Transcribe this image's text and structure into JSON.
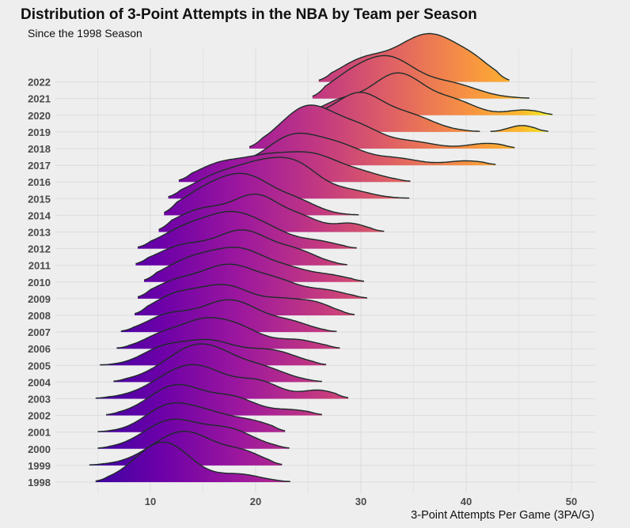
{
  "chart_data": {
    "type": "ridgeline",
    "title": "Distribution of 3-Point Attempts in the NBA by Team per Season",
    "subtitle": "Since the 1998 Season",
    "xlabel": "3-Point Attempts Per Game (3PA/G)",
    "ylabel": "",
    "xlim": [
      3.5,
      52
    ],
    "xticks": [
      10,
      20,
      30,
      40,
      50
    ],
    "grid": true,
    "colormap": "plasma",
    "colors": {
      "low": "#4c03a3",
      "mid": "#c13a91",
      "high": "#f6a33a",
      "top": "#f0f921",
      "outline": "#1e2d2a"
    },
    "seasons": [
      {
        "season": "1998",
        "range": [
          4.8,
          23.3
        ],
        "peaks": [
          {
            "x": 11.2,
            "h": 1.0,
            "w": 2.6
          },
          {
            "x": 18.5,
            "h": 0.18,
            "w": 2.0
          }
        ]
      },
      {
        "season": "1999",
        "range": [
          4.2,
          22.5
        ],
        "peaks": [
          {
            "x": 13.2,
            "h": 0.85,
            "w": 3.0
          },
          {
            "x": 19.0,
            "h": 0.25,
            "w": 1.8
          }
        ]
      },
      {
        "season": "2000",
        "range": [
          5.0,
          23.2
        ],
        "peaks": [
          {
            "x": 12.0,
            "h": 0.7,
            "w": 2.6
          },
          {
            "x": 17.5,
            "h": 0.45,
            "w": 2.4
          }
        ]
      },
      {
        "season": "2001",
        "range": [
          5.0,
          22.8
        ],
        "peaks": [
          {
            "x": 11.5,
            "h": 0.55,
            "w": 2.2
          },
          {
            "x": 15.5,
            "h": 0.45,
            "w": 2.6
          },
          {
            "x": 20.0,
            "h": 0.18,
            "w": 1.8
          }
        ]
      },
      {
        "season": "2002",
        "range": [
          5.8,
          26.3
        ],
        "peaks": [
          {
            "x": 12.5,
            "h": 0.75,
            "w": 2.6
          },
          {
            "x": 18.0,
            "h": 0.4,
            "w": 2.2
          },
          {
            "x": 23.5,
            "h": 0.12,
            "w": 1.8
          }
        ]
      },
      {
        "season": "2003",
        "range": [
          4.8,
          28.8
        ],
        "peaks": [
          {
            "x": 14.0,
            "h": 0.85,
            "w": 3.2
          },
          {
            "x": 20.5,
            "h": 0.35,
            "w": 2.0
          },
          {
            "x": 26.0,
            "h": 0.2,
            "w": 1.6
          }
        ]
      },
      {
        "season": "2004",
        "range": [
          6.5,
          26.3
        ],
        "peaks": [
          {
            "x": 14.8,
            "h": 0.95,
            "w": 3.2
          },
          {
            "x": 21.0,
            "h": 0.25,
            "w": 2.2
          }
        ]
      },
      {
        "season": "2005",
        "range": [
          5.2,
          26.7
        ],
        "peaks": [
          {
            "x": 11.0,
            "h": 0.35,
            "w": 2.0
          },
          {
            "x": 15.5,
            "h": 0.6,
            "w": 2.6
          },
          {
            "x": 21.5,
            "h": 0.35,
            "w": 2.4
          }
        ]
      },
      {
        "season": "2006",
        "range": [
          6.8,
          28.0
        ],
        "peaks": [
          {
            "x": 11.0,
            "h": 0.3,
            "w": 1.8
          },
          {
            "x": 14.5,
            "h": 0.5,
            "w": 2.0
          },
          {
            "x": 18.0,
            "h": 0.55,
            "w": 2.4
          },
          {
            "x": 24.0,
            "h": 0.2,
            "w": 2.0
          }
        ]
      },
      {
        "season": "2007",
        "range": [
          7.2,
          27.7
        ],
        "peaks": [
          {
            "x": 11.5,
            "h": 0.35,
            "w": 2.0
          },
          {
            "x": 17.5,
            "h": 0.8,
            "w": 3.0
          },
          {
            "x": 23.5,
            "h": 0.18,
            "w": 1.8
          }
        ]
      },
      {
        "season": "2008",
        "range": [
          8.5,
          29.4
        ],
        "peaks": [
          {
            "x": 12.0,
            "h": 0.35,
            "w": 2.0
          },
          {
            "x": 17.0,
            "h": 0.75,
            "w": 3.0
          },
          {
            "x": 22.5,
            "h": 0.22,
            "w": 1.6
          },
          {
            "x": 25.5,
            "h": 0.3,
            "w": 1.8
          }
        ]
      },
      {
        "season": "2009",
        "range": [
          8.8,
          30.6
        ],
        "peaks": [
          {
            "x": 12.0,
            "h": 0.3,
            "w": 2.0
          },
          {
            "x": 17.5,
            "h": 0.85,
            "w": 3.0
          },
          {
            "x": 22.5,
            "h": 0.25,
            "w": 1.8
          },
          {
            "x": 26.5,
            "h": 0.2,
            "w": 2.0
          }
        ]
      },
      {
        "season": "2010",
        "range": [
          9.4,
          30.3
        ],
        "peaks": [
          {
            "x": 13.5,
            "h": 0.45,
            "w": 2.4
          },
          {
            "x": 18.5,
            "h": 0.8,
            "w": 2.8
          },
          {
            "x": 23.5,
            "h": 0.2,
            "w": 1.8
          },
          {
            "x": 27.0,
            "h": 0.15,
            "w": 1.8
          }
        ]
      },
      {
        "season": "2011",
        "range": [
          8.6,
          28.7
        ],
        "peaks": [
          {
            "x": 13.0,
            "h": 0.45,
            "w": 2.4
          },
          {
            "x": 18.8,
            "h": 0.85,
            "w": 2.6
          },
          {
            "x": 24.0,
            "h": 0.3,
            "w": 2.0
          }
        ]
      },
      {
        "season": "2012",
        "range": [
          8.8,
          29.6
        ],
        "peaks": [
          {
            "x": 13.5,
            "h": 0.5,
            "w": 2.4
          },
          {
            "x": 17.5,
            "h": 0.65,
            "w": 2.2
          },
          {
            "x": 21.0,
            "h": 0.45,
            "w": 2.4
          },
          {
            "x": 26.0,
            "h": 0.15,
            "w": 1.8
          }
        ]
      },
      {
        "season": "2013",
        "range": [
          10.8,
          32.2
        ],
        "peaks": [
          {
            "x": 15.0,
            "h": 0.55,
            "w": 2.6
          },
          {
            "x": 20.2,
            "h": 0.85,
            "w": 2.2
          },
          {
            "x": 24.5,
            "h": 0.3,
            "w": 1.8
          },
          {
            "x": 29.0,
            "h": 0.2,
            "w": 1.5
          }
        ]
      },
      {
        "season": "2014",
        "range": [
          11.3,
          29.8
        ],
        "peaks": [
          {
            "x": 15.5,
            "h": 0.6,
            "w": 2.6
          },
          {
            "x": 19.5,
            "h": 0.8,
            "w": 2.4
          },
          {
            "x": 24.0,
            "h": 0.3,
            "w": 2.0
          }
        ]
      },
      {
        "season": "2015",
        "range": [
          11.7,
          34.6
        ],
        "peaks": [
          {
            "x": 16.5,
            "h": 0.55,
            "w": 2.6
          },
          {
            "x": 20.5,
            "h": 0.6,
            "w": 2.2
          },
          {
            "x": 24.0,
            "h": 0.75,
            "w": 2.2
          },
          {
            "x": 29.0,
            "h": 0.18,
            "w": 2.0
          }
        ]
      },
      {
        "season": "2016",
        "range": [
          12.7,
          34.7
        ],
        "peaks": [
          {
            "x": 16.5,
            "h": 0.4,
            "w": 2.2
          },
          {
            "x": 21.0,
            "h": 0.55,
            "w": 2.4
          },
          {
            "x": 25.5,
            "h": 0.6,
            "w": 2.4
          },
          {
            "x": 30.0,
            "h": 0.2,
            "w": 2.2
          }
        ]
      },
      {
        "season": "2017",
        "range": [
          18.0,
          42.8
        ],
        "peaks": [
          {
            "x": 23.5,
            "h": 0.7,
            "w": 2.4
          },
          {
            "x": 28.0,
            "h": 0.45,
            "w": 2.4
          },
          {
            "x": 33.5,
            "h": 0.15,
            "w": 2.0
          },
          {
            "x": 40.0,
            "h": 0.1,
            "w": 1.8
          }
        ]
      },
      {
        "season": "2018",
        "range": [
          19.4,
          44.6
        ],
        "peaks": [
          {
            "x": 25.0,
            "h": 1.05,
            "w": 2.6
          },
          {
            "x": 30.0,
            "h": 0.45,
            "w": 2.2
          },
          {
            "x": 35.0,
            "h": 0.15,
            "w": 2.0
          },
          {
            "x": 42.0,
            "h": 0.12,
            "w": 1.8
          }
        ]
      },
      {
        "season": "2019",
        "range": [
          21.8,
          41.3
        ],
        "peaks": [
          {
            "x": 25.5,
            "h": 0.3,
            "w": 2.0
          },
          {
            "x": 29.8,
            "h": 0.9,
            "w": 2.2
          },
          {
            "x": 34.5,
            "h": 0.4,
            "w": 2.4
          }
        ]
      },
      {
        "season": "2019b",
        "range": [
          42.3,
          47.8
        ],
        "peaks": [
          {
            "x": 45.3,
            "h": 0.15,
            "w": 1.2
          }
        ]
      },
      {
        "season": "2020",
        "range": [
          24.8,
          48.2
        ],
        "peaks": [
          {
            "x": 28.0,
            "h": 0.3,
            "w": 1.8
          },
          {
            "x": 33.5,
            "h": 1.05,
            "w": 2.6
          },
          {
            "x": 39.0,
            "h": 0.3,
            "w": 2.0
          },
          {
            "x": 45.5,
            "h": 0.12,
            "w": 1.6
          }
        ]
      },
      {
        "season": "2021",
        "range": [
          25.4,
          46.0
        ],
        "peaks": [
          {
            "x": 28.5,
            "h": 0.35,
            "w": 2.0
          },
          {
            "x": 32.5,
            "h": 1.0,
            "w": 2.6
          },
          {
            "x": 38.5,
            "h": 0.35,
            "w": 2.6
          }
        ]
      },
      {
        "season": "2022",
        "range": [
          26.0,
          44.1
        ],
        "peaks": [
          {
            "x": 30.0,
            "h": 0.45,
            "w": 2.2
          },
          {
            "x": 36.5,
            "h": 1.2,
            "w": 3.2
          },
          {
            "x": 41.0,
            "h": 0.2,
            "w": 1.6
          }
        ]
      }
    ],
    "ylabels": [
      "2022",
      "2021",
      "2020",
      "2019",
      "2018",
      "2017",
      "2016",
      "2015",
      "2014",
      "2013",
      "2012",
      "2011",
      "2010",
      "2009",
      "2008",
      "2007",
      "2006",
      "2005",
      "2004",
      "2003",
      "2002",
      "2001",
      "2000",
      "1999",
      "1998"
    ]
  }
}
